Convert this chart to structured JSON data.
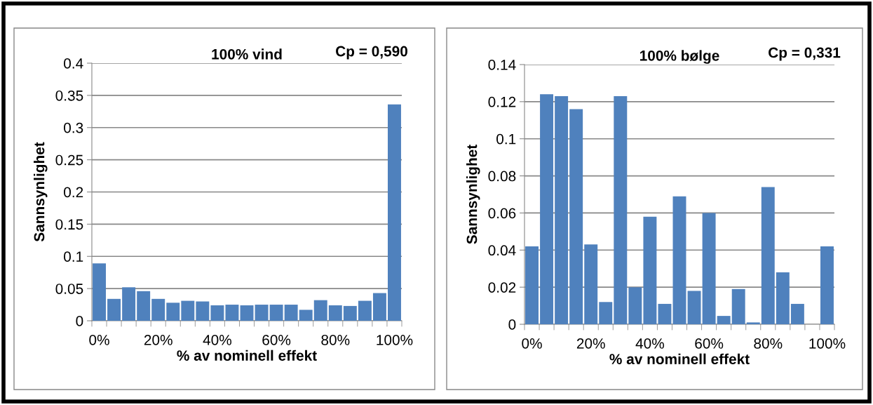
{
  "chart_data": [
    {
      "type": "bar",
      "title": "100% vind",
      "annotations": [
        "Cp = 0,590"
      ],
      "xlabel": "% av nominell effekt",
      "ylabel": "Sannsynlighet",
      "categories": [
        "0%",
        null,
        null,
        null,
        "20%",
        null,
        null,
        null,
        "40%",
        null,
        null,
        null,
        "60%",
        null,
        null,
        null,
        "80%",
        null,
        null,
        null,
        "100%"
      ],
      "values": [
        0.089,
        0.034,
        0.052,
        0.046,
        0.034,
        0.028,
        0.031,
        0.03,
        0.024,
        0.025,
        0.024,
        0.025,
        0.025,
        0.025,
        0.017,
        0.032,
        0.024,
        0.023,
        0.031,
        0.043,
        0.336
      ],
      "color": "#4f81bd",
      "ylim": [
        0,
        0.4
      ],
      "yticks": [
        0,
        0.05,
        0.1,
        0.15,
        0.2,
        0.25,
        0.3,
        0.35,
        0.4
      ],
      "grid": "y"
    },
    {
      "type": "bar",
      "title": "100% bølge",
      "annotations": [
        "Cp = 0,331"
      ],
      "xlabel": "% av nominell effekt",
      "ylabel": "Sannsynlighet",
      "categories": [
        "0%",
        null,
        null,
        null,
        "20%",
        null,
        null,
        null,
        "40%",
        null,
        null,
        null,
        "60%",
        null,
        null,
        null,
        "80%",
        null,
        null,
        null,
        "100%"
      ],
      "values": [
        0.042,
        0.124,
        0.123,
        0.116,
        0.043,
        0.012,
        0.123,
        0.02,
        0.058,
        0.011,
        0.069,
        0.018,
        0.06,
        0.0045,
        0.019,
        0.001,
        0.074,
        0.028,
        0.011,
        null,
        0.042
      ],
      "color": "#4f81bd",
      "ylim": [
        0,
        0.14
      ],
      "yticks": [
        0,
        0.02,
        0.04,
        0.06,
        0.08,
        0.1,
        0.12,
        0.14
      ],
      "grid": "y"
    }
  ]
}
